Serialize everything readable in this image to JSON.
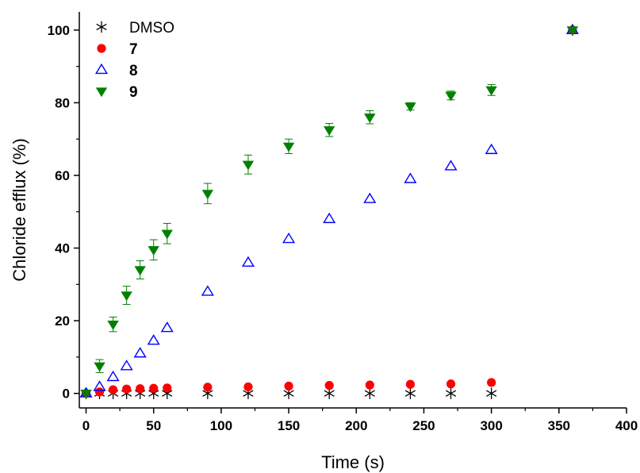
{
  "chart_data": {
    "type": "scatter",
    "title": "",
    "xlabel": "Time (s)",
    "ylabel": "Chloride efflux (%)",
    "xlim": [
      -5,
      400
    ],
    "ylim": [
      -4,
      105
    ],
    "x_ticks": [
      0,
      50,
      100,
      150,
      200,
      250,
      300,
      350,
      400
    ],
    "y_ticks": [
      0,
      20,
      40,
      60,
      80,
      100
    ],
    "grid": false,
    "legend_position": "top-left",
    "series": [
      {
        "name": "DMSO",
        "marker": "asterisk",
        "color": "#000000",
        "points": [
          [
            0,
            0
          ],
          [
            10,
            0
          ],
          [
            20,
            0
          ],
          [
            30,
            0
          ],
          [
            40,
            0
          ],
          [
            50,
            0
          ],
          [
            60,
            0
          ],
          [
            90,
            0
          ],
          [
            120,
            0
          ],
          [
            150,
            0
          ],
          [
            180,
            0
          ],
          [
            210,
            0
          ],
          [
            240,
            0
          ],
          [
            270,
            0
          ],
          [
            300,
            0
          ],
          [
            360,
            100
          ]
        ]
      },
      {
        "name": "7",
        "marker": "circle",
        "color": "#ff0000",
        "points": [
          [
            0,
            0
          ],
          [
            10,
            0.4
          ],
          [
            20,
            1.0
          ],
          [
            30,
            1.2
          ],
          [
            40,
            1.3
          ],
          [
            50,
            1.4
          ],
          [
            60,
            1.5
          ],
          [
            90,
            1.7
          ],
          [
            120,
            1.8
          ],
          [
            150,
            2.0
          ],
          [
            180,
            2.2
          ],
          [
            210,
            2.3
          ],
          [
            240,
            2.5
          ],
          [
            270,
            2.6
          ],
          [
            300,
            3.0
          ],
          [
            360,
            100
          ]
        ]
      },
      {
        "name": "8",
        "marker": "triangle-up-open",
        "color": "#0000ff",
        "points": [
          [
            0,
            0
          ],
          [
            10,
            1.8
          ],
          [
            20,
            4.5
          ],
          [
            30,
            7.5
          ],
          [
            40,
            11
          ],
          [
            50,
            14.5
          ],
          [
            60,
            18
          ],
          [
            90,
            28
          ],
          [
            120,
            36
          ],
          [
            150,
            42.5
          ],
          [
            180,
            48
          ],
          [
            210,
            53.5
          ],
          [
            240,
            59
          ],
          [
            270,
            62.5
          ],
          [
            300,
            67
          ],
          [
            360,
            100
          ]
        ]
      },
      {
        "name": "9",
        "marker": "triangle-down",
        "color": "#008000",
        "points": [
          [
            0,
            0
          ],
          [
            10,
            7.5
          ],
          [
            20,
            19
          ],
          [
            30,
            27
          ],
          [
            40,
            34
          ],
          [
            50,
            39.5
          ],
          [
            60,
            44
          ],
          [
            90,
            55
          ],
          [
            120,
            63
          ],
          [
            150,
            68
          ],
          [
            180,
            72.5
          ],
          [
            210,
            76
          ],
          [
            240,
            79
          ],
          [
            270,
            82
          ],
          [
            300,
            83.5
          ],
          [
            360,
            100
          ]
        ],
        "error": [
          0,
          1.8,
          2.0,
          2.5,
          2.5,
          2.8,
          2.8,
          2.8,
          2.6,
          2.0,
          1.8,
          1.8,
          1.0,
          1.2,
          1.5,
          0.5
        ]
      }
    ]
  }
}
